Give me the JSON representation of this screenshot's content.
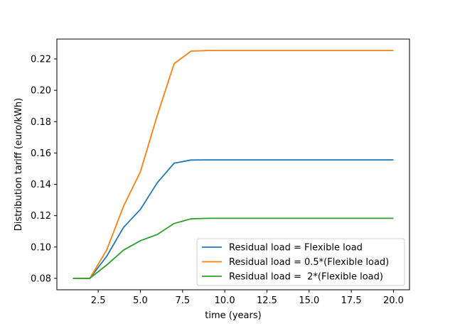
{
  "chart_data": {
    "type": "line",
    "xlabel": "time (years)",
    "ylabel": "Distribution tariff (euro/kWh)",
    "xlim": [
      0.05,
      20.95
    ],
    "ylim": [
      0.0727,
      0.2327
    ],
    "xticks": [
      2.5,
      5.0,
      7.5,
      10.0,
      12.5,
      15.0,
      17.5,
      20.0
    ],
    "xtick_labels": [
      "2.5",
      "5.0",
      "7.5",
      "10.0",
      "12.5",
      "15.0",
      "17.5",
      "20.0"
    ],
    "yticks": [
      0.08,
      0.1,
      0.12,
      0.14,
      0.16,
      0.18,
      0.2,
      0.22
    ],
    "ytick_labels": [
      "0.08",
      "0.10",
      "0.12",
      "0.14",
      "0.16",
      "0.18",
      "0.20",
      "0.22"
    ],
    "grid": false,
    "legend_position": "lower-right",
    "x": [
      1,
      2,
      3,
      4,
      5,
      6,
      7,
      8,
      9,
      10,
      11,
      12,
      13,
      14,
      15,
      16,
      17,
      18,
      19,
      20
    ],
    "series": [
      {
        "name": "Residual load = Flexible load",
        "color": "#1f77b4",
        "values": [
          0.08,
          0.08,
          0.094,
          0.1125,
          0.124,
          0.141,
          0.1535,
          0.1555,
          0.1556,
          0.1556,
          0.1556,
          0.1556,
          0.1556,
          0.1556,
          0.1556,
          0.1556,
          0.1556,
          0.1556,
          0.1556,
          0.1556
        ]
      },
      {
        "name": "Residual load = 0.5*(Flexible load)",
        "color": "#ff7f0e",
        "values": [
          0.08,
          0.08,
          0.098,
          0.126,
          0.148,
          0.184,
          0.217,
          0.225,
          0.2254,
          0.2254,
          0.2254,
          0.2254,
          0.2254,
          0.2254,
          0.2254,
          0.2254,
          0.2254,
          0.2254,
          0.2254,
          0.2254
        ]
      },
      {
        "name": "Residual load =  2*(Flexible load)",
        "color": "#2ca02c",
        "values": [
          0.08,
          0.08,
          0.0885,
          0.098,
          0.104,
          0.108,
          0.115,
          0.118,
          0.1183,
          0.1183,
          0.1183,
          0.1183,
          0.1183,
          0.1183,
          0.1183,
          0.1183,
          0.1183,
          0.1183,
          0.1183,
          0.1183
        ]
      }
    ]
  }
}
